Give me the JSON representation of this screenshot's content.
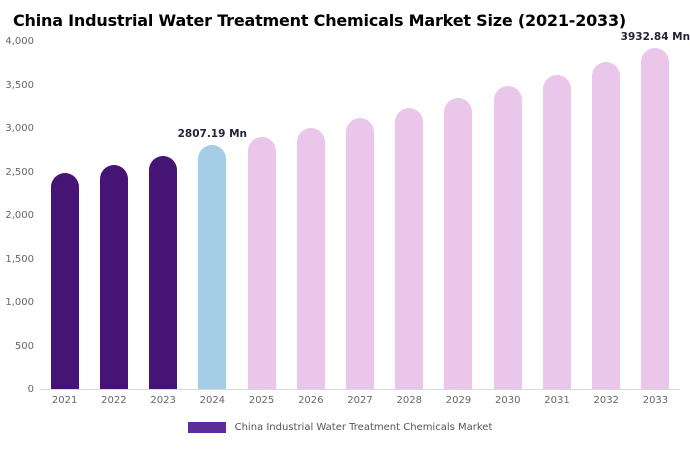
{
  "chart_data": {
    "type": "bar",
    "title": "China Industrial Water Treatment Chemicals Market Size (2021-2033)",
    "categories": [
      "2021",
      "2022",
      "2023",
      "2024",
      "2025",
      "2026",
      "2027",
      "2028",
      "2029",
      "2030",
      "2031",
      "2032",
      "2033"
    ],
    "values": [
      2490,
      2580,
      2690,
      2807.19,
      2900,
      3010,
      3120,
      3240,
      3360,
      3490,
      3620,
      3770,
      3932.84
    ],
    "unit": "Mn",
    "ylim": [
      0,
      4000
    ],
    "yticks": [
      0,
      500,
      1000,
      1500,
      2000,
      2500,
      3000,
      3500,
      4000
    ],
    "grid": false,
    "bar_styles": [
      "historical",
      "historical",
      "historical",
      "highlight",
      "forecast",
      "forecast",
      "forecast",
      "forecast",
      "forecast",
      "forecast",
      "forecast",
      "forecast",
      "forecast"
    ],
    "colors": {
      "historical": "#461475",
      "highlight": "#a5cde6",
      "forecast": "#eac7ea"
    },
    "annotations": [
      {
        "index": 3,
        "text": "2807.19 Mn"
      },
      {
        "index": 12,
        "text": "3932.84 Mn"
      }
    ],
    "legend": [
      {
        "label": "China Industrial Water Treatment Chemicals Market",
        "color": "#5e2b9a",
        "position": "bottom"
      }
    ]
  }
}
